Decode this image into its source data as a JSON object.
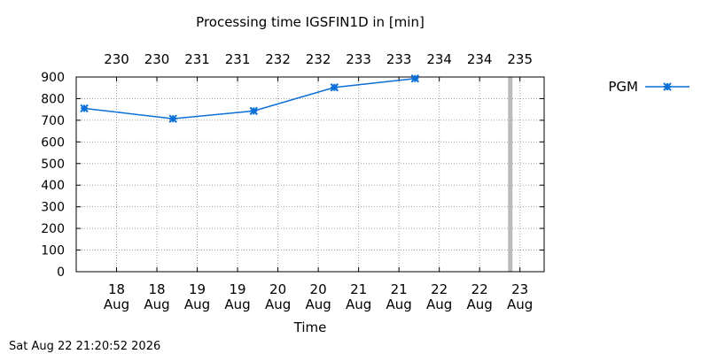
{
  "chart_data": {
    "type": "line",
    "title": "Processing time IGSFIN1D in [min]",
    "xlabel": "Time",
    "ylabel": "",
    "ylim": [
      0,
      900
    ],
    "yticks": [
      0,
      100,
      200,
      300,
      400,
      500,
      600,
      700,
      800,
      900
    ],
    "x_range_days": [
      17.5,
      23.3
    ],
    "bottom_ticks": [
      {
        "x": 18.0,
        "day": "18",
        "month": "Aug"
      },
      {
        "x": 18.5,
        "day": "18",
        "month": "Aug"
      },
      {
        "x": 19.0,
        "day": "19",
        "month": "Aug"
      },
      {
        "x": 19.5,
        "day": "19",
        "month": "Aug"
      },
      {
        "x": 20.0,
        "day": "20",
        "month": "Aug"
      },
      {
        "x": 20.5,
        "day": "20",
        "month": "Aug"
      },
      {
        "x": 21.0,
        "day": "21",
        "month": "Aug"
      },
      {
        "x": 21.5,
        "day": "21",
        "month": "Aug"
      },
      {
        "x": 22.0,
        "day": "22",
        "month": "Aug"
      },
      {
        "x": 22.5,
        "day": "22",
        "month": "Aug"
      },
      {
        "x": 23.0,
        "day": "23",
        "month": "Aug"
      }
    ],
    "top_ticks": [
      {
        "x": 18.0,
        "label": "230"
      },
      {
        "x": 18.5,
        "label": "230"
      },
      {
        "x": 19.0,
        "label": "231"
      },
      {
        "x": 19.5,
        "label": "231"
      },
      {
        "x": 20.0,
        "label": "232"
      },
      {
        "x": 20.5,
        "label": "232"
      },
      {
        "x": 21.0,
        "label": "233"
      },
      {
        "x": 21.5,
        "label": "233"
      },
      {
        "x": 22.0,
        "label": "234"
      },
      {
        "x": 22.5,
        "label": "234"
      },
      {
        "x": 23.0,
        "label": "235"
      }
    ],
    "series": [
      {
        "name": "PGM",
        "color": "#0a6fd6",
        "marker": "star",
        "x": [
          17.6,
          18.7,
          19.7,
          20.7,
          21.7
        ],
        "values": [
          755,
          707,
          743,
          852,
          893
        ]
      }
    ],
    "current_time_line_x": 22.88,
    "current_time_line_color": "#bbbbbb",
    "grid": true,
    "legend_position": "right"
  },
  "timestamp": "Sat Aug 22 21:20:52 2026"
}
